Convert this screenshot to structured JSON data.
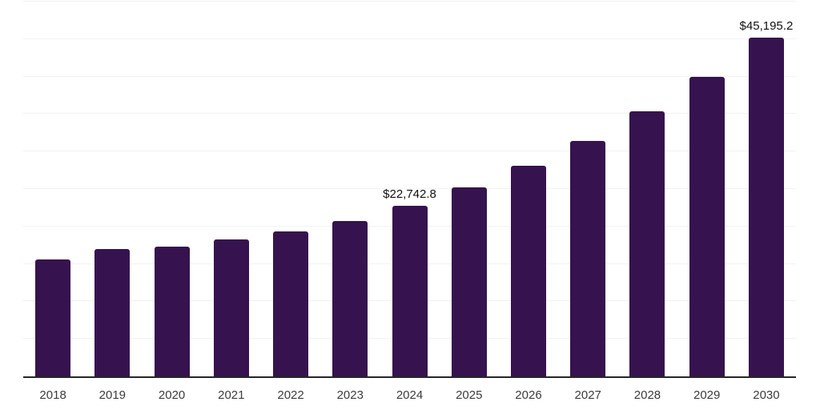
{
  "chart_data": {
    "type": "bar",
    "title": "",
    "xlabel": "",
    "ylabel": "",
    "categories": [
      "2018",
      "2019",
      "2020",
      "2021",
      "2022",
      "2023",
      "2024",
      "2025",
      "2026",
      "2027",
      "2028",
      "2029",
      "2030"
    ],
    "values": [
      15600,
      17000,
      17300,
      18260,
      19330,
      20720,
      22742.8,
      25200,
      28090,
      31400,
      35350,
      39950,
      45195.2
    ],
    "point_labels": [
      null,
      null,
      null,
      null,
      null,
      null,
      "$22,742.8",
      null,
      null,
      null,
      null,
      null,
      "$45,195.2"
    ],
    "ylim": [
      0,
      50000
    ],
    "gridline_interval": 5000,
    "grid": true,
    "legend": false,
    "colors": {
      "bar": "#36134e",
      "axis": "#262626",
      "gridline": "#f2f2f2",
      "tick_label": "#3c3c3c",
      "value_label": "#111111",
      "background": "#ffffff"
    }
  }
}
